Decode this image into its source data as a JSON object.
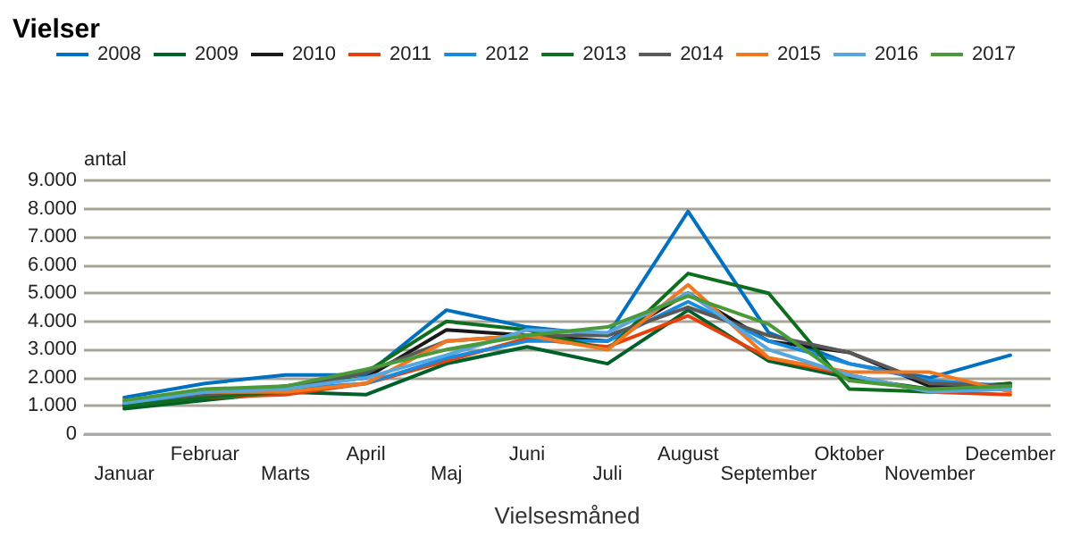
{
  "chart_data": {
    "type": "line",
    "title": "Vielser",
    "xlabel": "Vielsesmåned",
    "ylabel": "antal",
    "categories": [
      "Januar",
      "Februar",
      "Marts",
      "April",
      "Maj",
      "Juni",
      "Juli",
      "August",
      "September",
      "Oktober",
      "November",
      "December"
    ],
    "series": [
      {
        "name": "2008",
        "color": "#0070c0",
        "values": [
          1300,
          1800,
          2100,
          2100,
          4400,
          3800,
          3500,
          7900,
          3600,
          2500,
          2000,
          2800
        ]
      },
      {
        "name": "2009",
        "color": "#00602a",
        "values": [
          900,
          1200,
          1500,
          1400,
          2500,
          3100,
          2500,
          4400,
          2600,
          2000,
          1600,
          1800
        ]
      },
      {
        "name": "2010",
        "color": "#1a1a1a",
        "values": [
          1000,
          1400,
          1700,
          2000,
          3700,
          3500,
          3300,
          5000,
          3300,
          2900,
          1700,
          1700
        ]
      },
      {
        "name": "2011",
        "color": "#e8400c",
        "values": [
          1100,
          1300,
          1400,
          1800,
          2600,
          3400,
          3100,
          4200,
          2700,
          2100,
          1500,
          1400
        ]
      },
      {
        "name": "2012",
        "color": "#1a8adc",
        "values": [
          1100,
          1400,
          1600,
          1800,
          2700,
          3300,
          3300,
          4700,
          3300,
          2500,
          1900,
          1700
        ]
      },
      {
        "name": "2013",
        "color": "#0e6e1e",
        "values": [
          1000,
          1300,
          1500,
          2200,
          4000,
          3700,
          3000,
          5700,
          5000,
          1600,
          1500,
          1800
        ]
      },
      {
        "name": "2014",
        "color": "#595959",
        "values": [
          1200,
          1400,
          1600,
          2200,
          3300,
          3500,
          3500,
          4500,
          3500,
          2900,
          1800,
          1700
        ]
      },
      {
        "name": "2015",
        "color": "#f07820",
        "values": [
          1200,
          1500,
          1500,
          1800,
          3300,
          3500,
          3000,
          5300,
          2700,
          2200,
          2200,
          1500
        ]
      },
      {
        "name": "2016",
        "color": "#56a6e0",
        "values": [
          1100,
          1500,
          1600,
          2000,
          2800,
          3700,
          3600,
          5000,
          3000,
          2100,
          1500,
          1600
        ]
      },
      {
        "name": "2017",
        "color": "#4a9a3a",
        "values": [
          1200,
          1600,
          1700,
          2300,
          3000,
          3500,
          3800,
          4900,
          3900,
          1900,
          1600,
          1700
        ]
      }
    ],
    "ylim": [
      0,
      9000
    ],
    "yticks": [
      0,
      {
        "value": 1000,
        "label": "1.000"
      },
      {
        "value": 2000,
        "label": "2.000"
      },
      {
        "value": 3000,
        "label": "3.000"
      },
      {
        "value": 4000,
        "label": "4.000"
      },
      {
        "value": 5000,
        "label": "5.000"
      },
      {
        "value": 6000,
        "label": "6.000"
      },
      {
        "value": 7000,
        "label": "7.000"
      },
      {
        "value": 8000,
        "label": "8.000"
      },
      {
        "value": 9000,
        "label": "9.000"
      }
    ],
    "grid": "y",
    "legend": "top",
    "marker": "none",
    "line_style": "solid"
  }
}
